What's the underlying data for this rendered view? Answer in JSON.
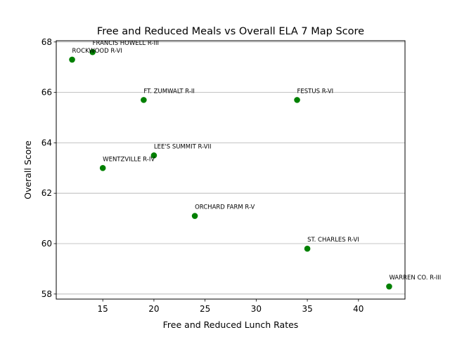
{
  "chart_data": {
    "type": "scatter",
    "title": "Free and Reduced Meals vs Overall ELA 7 Map Score",
    "xlabel": "Free and Reduced Lunch Rates",
    "ylabel": "Overall Score",
    "xlim": [
      10.45,
      44.55
    ],
    "ylim": [
      57.8,
      68.05
    ],
    "xticks": [
      15,
      20,
      25,
      30,
      35,
      40
    ],
    "yticks": [
      58,
      60,
      62,
      64,
      66,
      68
    ],
    "grid": "horizontal",
    "marker_color": "#008000",
    "points": [
      {
        "label": "ROCKWOOD R-VI",
        "x": 12,
        "y": 67.3
      },
      {
        "label": "FRANCIS HOWELL R-III",
        "x": 14,
        "y": 67.6
      },
      {
        "label": "WENTZVILLE R-IV",
        "x": 15,
        "y": 63.0
      },
      {
        "label": "FT. ZUMWALT R-II",
        "x": 19,
        "y": 65.7
      },
      {
        "label": "LEE'S SUMMIT R-VII",
        "x": 20,
        "y": 63.5
      },
      {
        "label": "ORCHARD FARM R-V",
        "x": 24,
        "y": 61.1
      },
      {
        "label": "FESTUS R-VI",
        "x": 34,
        "y": 65.7
      },
      {
        "label": "ST. CHARLES R-VI",
        "x": 35,
        "y": 59.8
      },
      {
        "label": "WARREN CO. R-III",
        "x": 43,
        "y": 58.3
      }
    ]
  }
}
